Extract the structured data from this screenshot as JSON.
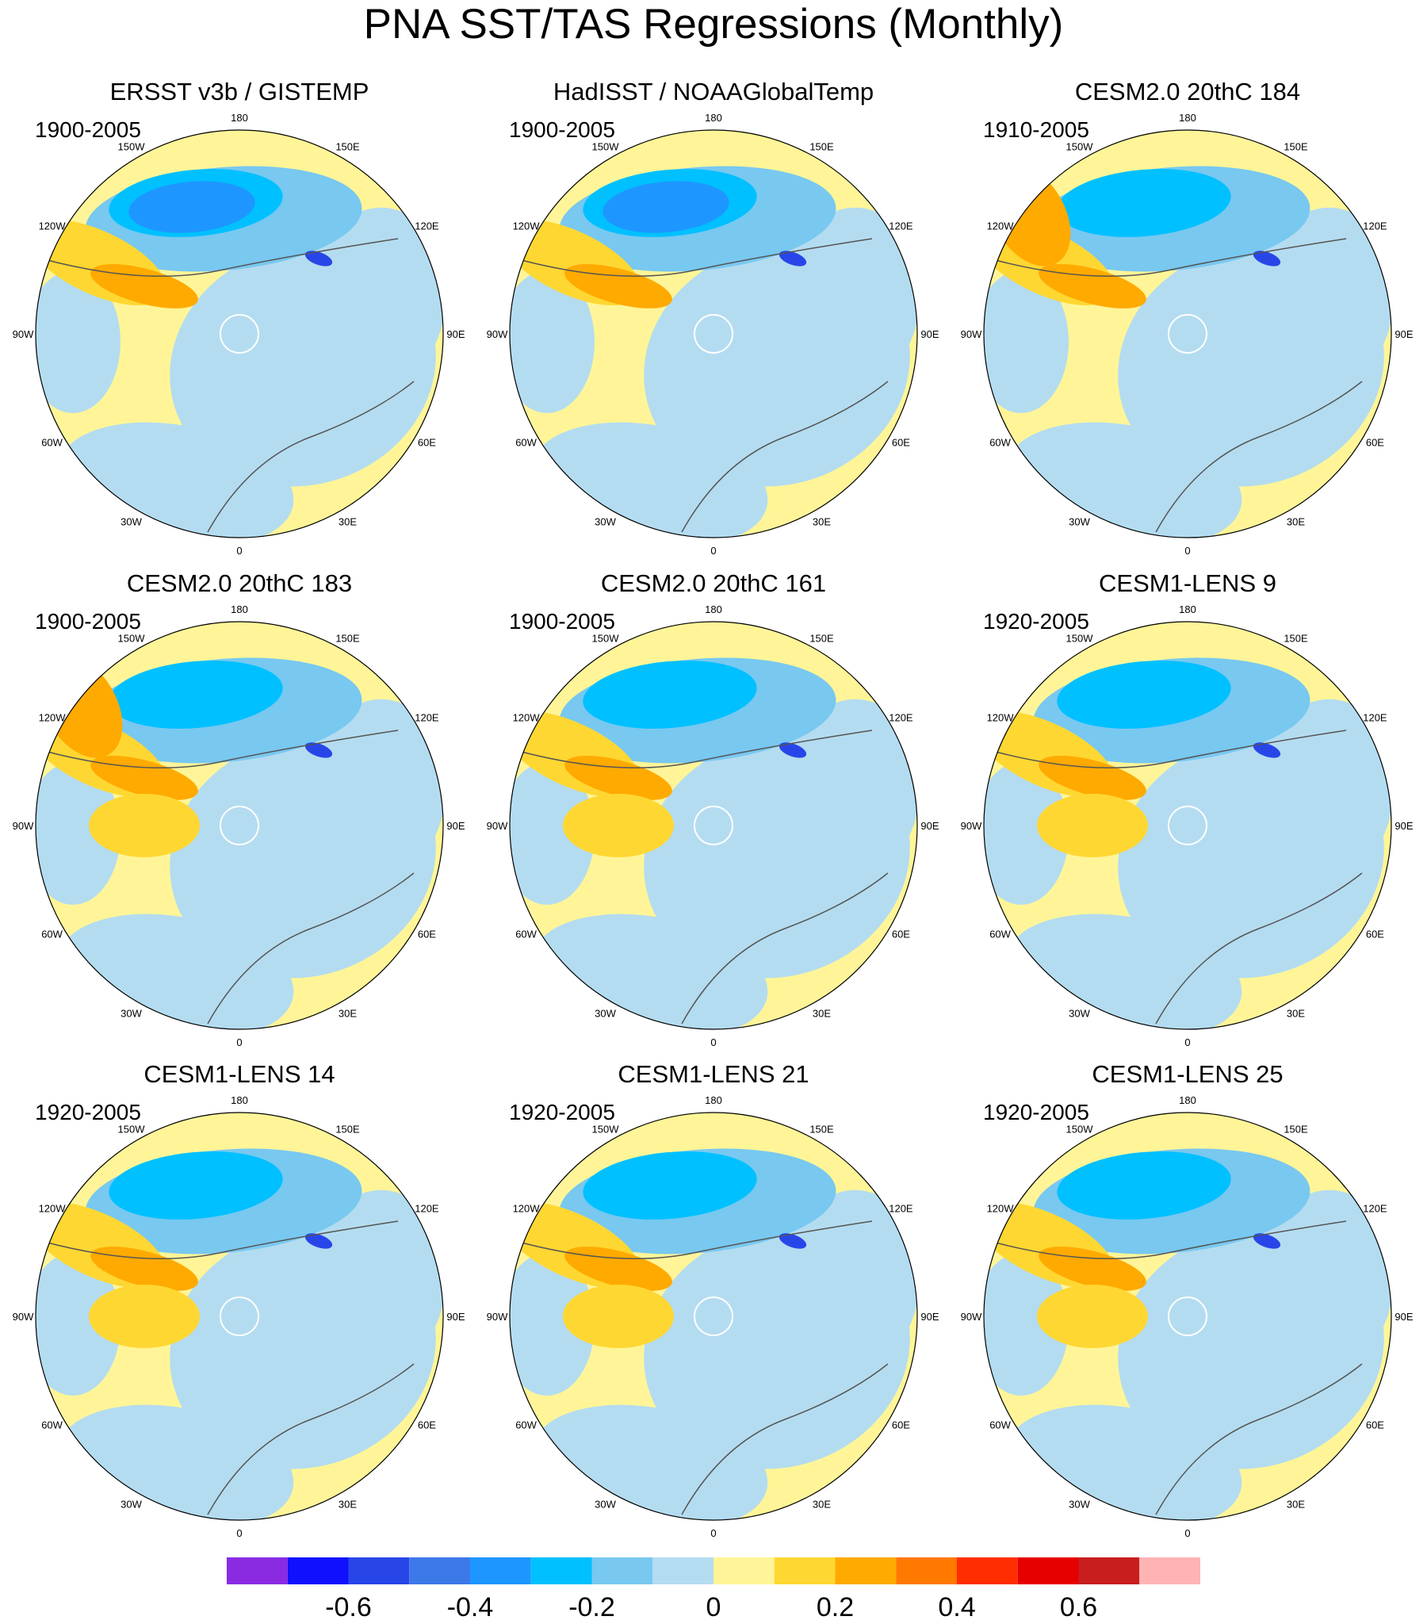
{
  "chart_data": {
    "type": "heatmap",
    "title": "PNA SST/TAS Regressions (Monthly)",
    "projection": "north-polar-stereographic",
    "longitude_labels": [
      "180",
      "150E",
      "120E",
      "90E",
      "60E",
      "30E",
      "0",
      "30W",
      "60W",
      "90W",
      "120W",
      "150W"
    ],
    "panels": [
      {
        "title": "ERSST v3b / GISTEMP",
        "period": "1900-2005"
      },
      {
        "title": "HadISST / NOAAGlobalTemp",
        "period": "1900-2005"
      },
      {
        "title": "CESM2.0 20thC 184",
        "period": "1910-2005"
      },
      {
        "title": "CESM2.0 20thC 183",
        "period": "1900-2005"
      },
      {
        "title": "CESM2.0 20thC 161",
        "period": "1900-2005"
      },
      {
        "title": "CESM1-LENS 9",
        "period": "1920-2005"
      },
      {
        "title": "CESM1-LENS 14",
        "period": "1920-2005"
      },
      {
        "title": "CESM1-LENS 21",
        "period": "1920-2005"
      },
      {
        "title": "CESM1-LENS 25",
        "period": "1920-2005"
      }
    ],
    "colorbar": {
      "levels": [
        -0.7,
        -0.6,
        -0.5,
        -0.4,
        -0.3,
        -0.2,
        -0.1,
        0,
        0.1,
        0.2,
        0.3,
        0.4,
        0.5,
        0.6,
        0.7
      ],
      "tick_labels": [
        "-0.6",
        "-0.4",
        "-0.2",
        "0",
        "0.2",
        "0.4",
        "0.6"
      ],
      "tick_values": [
        -0.6,
        -0.4,
        -0.2,
        0,
        0.2,
        0.4,
        0.6
      ],
      "colors": [
        "#8a2be2",
        "#1010ff",
        "#2846e8",
        "#3c78e8",
        "#1e96ff",
        "#00c0ff",
        "#78c8f0",
        "#b4dcf0",
        "#fff598",
        "#ffd732",
        "#ffaa00",
        "#ff7800",
        "#ff2d00",
        "#e60000",
        "#c81e1e",
        "#ffb4b4"
      ]
    }
  }
}
